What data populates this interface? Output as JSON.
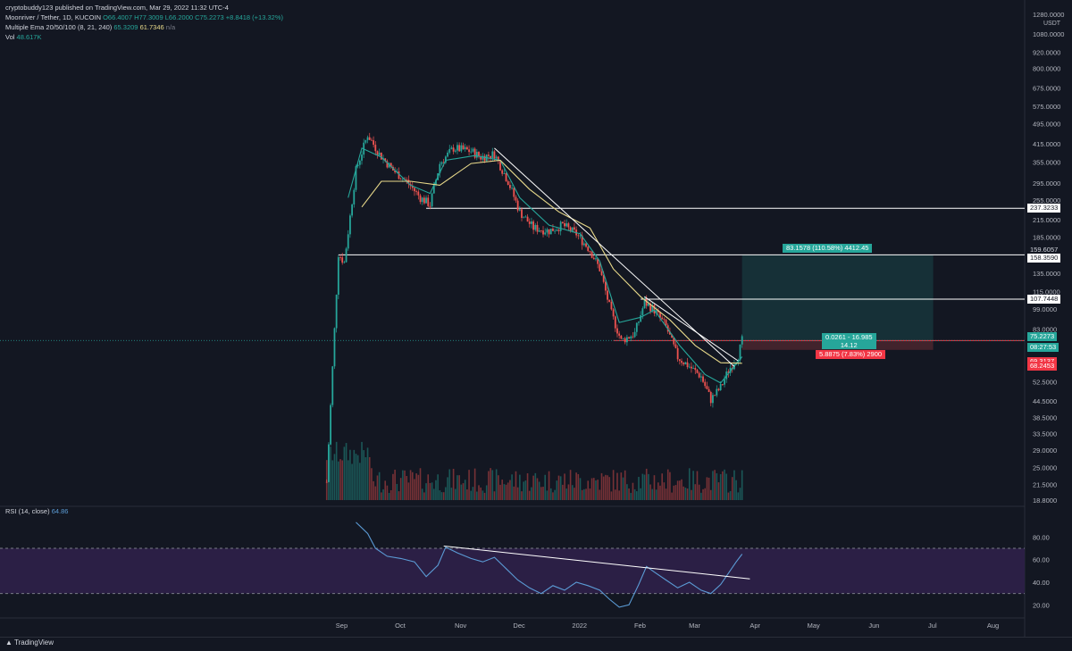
{
  "header": {
    "publisher": "cryptobuddy123 published on TradingView.com, Mar 29, 2022 11:32 UTC-4",
    "symbol": "Moonriver / Tether, 1D, KUCOIN",
    "ohlc": {
      "open": "O66.4007",
      "high": "H77.3009",
      "low": "L66.2000",
      "close": "C75.2273",
      "change": "+8.8418 (+13.32%)"
    },
    "ema_name": "Multiple Ema 20/50/100 (8, 21, 240)",
    "ema_values": [
      "65.3209",
      "61.7346",
      "n/a"
    ],
    "vol_name": "Vol",
    "vol_value": "48.617K",
    "rsi_name": "RSI (14, close)",
    "rsi_value": "64.86"
  },
  "price_axis": {
    "currency": "USDT",
    "ticks": [
      "1280.0000",
      "1080.0000",
      "920.0000",
      "800.0000",
      "675.0000",
      "575.0000",
      "495.0000",
      "415.0000",
      "355.0000",
      "295.0000",
      "255.0000",
      "215.0000",
      "185.0000",
      "135.0000",
      "115.0000",
      "99.0000",
      "83.0000",
      "62.5000",
      "52.5000",
      "44.5000",
      "38.5000",
      "33.5000",
      "29.0000",
      "25.0000",
      "21.5000",
      "18.8000"
    ],
    "labels": {
      "l237": "237.3233",
      "l159": "159.6057",
      "l158": "158.3590",
      "l107": "107.7448",
      "last": "75.2273",
      "countdown": "08:27:53",
      "l75": "75.2012",
      "l69": "69.3137",
      "l68": "68.2453"
    }
  },
  "rsi_axis": {
    "ticks": [
      "80.00",
      "60.00",
      "40.00",
      "20.00"
    ]
  },
  "time_axis": {
    "ticks": [
      "Sep",
      "Oct",
      "Nov",
      "Dec",
      "2022",
      "Feb",
      "Mar",
      "Apr",
      "May",
      "Jun",
      "Jul",
      "Aug"
    ]
  },
  "position": {
    "target_label": "83.1578 (110.58%) 4412.45",
    "center_label_1": "0.0261 - 16.985",
    "center_label_2": "14.12",
    "stop_label": "5.8875 (7.83%) 2900"
  },
  "footer": {
    "brand": "TradingView"
  },
  "colors": {
    "background": "#131722",
    "up": "#26a69a",
    "down": "#ef5350",
    "ema_fast": "#26a69a",
    "ema_slow": "#e8d98a",
    "rsi_line": "#5b9bd5",
    "rsi_band": "#2b1f45"
  },
  "chart_data": {
    "type": "candlestick",
    "symbol": "Moonriver / Tether, 1D, KUCOIN",
    "scale": "log",
    "ylim": [
      18.8,
      1280
    ],
    "x_range": [
      "2021-08-24",
      "2022-08-20"
    ],
    "close_path": [
      {
        "date": "2021-08-28",
        "close": 22
      },
      {
        "date": "2021-09-03",
        "close": 160
      },
      {
        "date": "2021-09-06",
        "close": 148
      },
      {
        "date": "2021-09-12",
        "close": 330
      },
      {
        "date": "2021-09-18",
        "close": 450
      },
      {
        "date": "2021-09-24",
        "close": 380
      },
      {
        "date": "2021-10-01",
        "close": 330
      },
      {
        "date": "2021-10-08",
        "close": 300
      },
      {
        "date": "2021-10-15",
        "close": 260
      },
      {
        "date": "2021-10-20",
        "close": 245
      },
      {
        "date": "2021-10-25",
        "close": 350
      },
      {
        "date": "2021-11-01",
        "close": 400
      },
      {
        "date": "2021-11-10",
        "close": 390
      },
      {
        "date": "2021-11-15",
        "close": 370
      },
      {
        "date": "2021-11-22",
        "close": 380
      },
      {
        "date": "2021-11-29",
        "close": 300
      },
      {
        "date": "2021-12-05",
        "close": 230
      },
      {
        "date": "2021-12-12",
        "close": 200
      },
      {
        "date": "2021-12-20",
        "close": 195
      },
      {
        "date": "2021-12-27",
        "close": 205
      },
      {
        "date": "2022-01-03",
        "close": 190
      },
      {
        "date": "2022-01-10",
        "close": 165
      },
      {
        "date": "2022-01-15",
        "close": 140
      },
      {
        "date": "2022-01-21",
        "close": 95
      },
      {
        "date": "2022-01-26",
        "close": 75
      },
      {
        "date": "2022-02-02",
        "close": 80
      },
      {
        "date": "2022-02-07",
        "close": 105
      },
      {
        "date": "2022-02-12",
        "close": 98
      },
      {
        "date": "2022-02-18",
        "close": 85
      },
      {
        "date": "2022-02-24",
        "close": 65
      },
      {
        "date": "2022-03-02",
        "close": 60
      },
      {
        "date": "2022-03-08",
        "close": 55
      },
      {
        "date": "2022-03-13",
        "close": 45
      },
      {
        "date": "2022-03-18",
        "close": 50
      },
      {
        "date": "2022-03-22",
        "close": 58
      },
      {
        "date": "2022-03-27",
        "close": 66
      },
      {
        "date": "2022-03-29",
        "close": 75.2273
      }
    ],
    "ema_fast": [
      {
        "date": "2021-09-08",
        "v": 260
      },
      {
        "date": "2021-09-15",
        "v": 400
      },
      {
        "date": "2021-09-25",
        "v": 370
      },
      {
        "date": "2021-10-10",
        "v": 290
      },
      {
        "date": "2021-10-20",
        "v": 270
      },
      {
        "date": "2021-10-28",
        "v": 360
      },
      {
        "date": "2021-11-12",
        "v": 375
      },
      {
        "date": "2021-11-25",
        "v": 360
      },
      {
        "date": "2021-12-05",
        "v": 260
      },
      {
        "date": "2021-12-20",
        "v": 205
      },
      {
        "date": "2022-01-05",
        "v": 190
      },
      {
        "date": "2022-01-15",
        "v": 150
      },
      {
        "date": "2022-01-25",
        "v": 88
      },
      {
        "date": "2022-02-05",
        "v": 92
      },
      {
        "date": "2022-02-12",
        "v": 98
      },
      {
        "date": "2022-02-25",
        "v": 72
      },
      {
        "date": "2022-03-10",
        "v": 56
      },
      {
        "date": "2022-03-18",
        "v": 52
      },
      {
        "date": "2022-03-29",
        "v": 65.3209
      }
    ],
    "ema_slow": [
      {
        "date": "2021-09-15",
        "v": 240
      },
      {
        "date": "2021-09-25",
        "v": 300
      },
      {
        "date": "2021-10-10",
        "v": 300
      },
      {
        "date": "2021-10-25",
        "v": 290
      },
      {
        "date": "2021-11-10",
        "v": 350
      },
      {
        "date": "2021-11-25",
        "v": 360
      },
      {
        "date": "2021-12-10",
        "v": 280
      },
      {
        "date": "2021-12-25",
        "v": 230
      },
      {
        "date": "2022-01-10",
        "v": 200
      },
      {
        "date": "2022-01-22",
        "v": 140
      },
      {
        "date": "2022-02-05",
        "v": 110
      },
      {
        "date": "2022-02-20",
        "v": 90
      },
      {
        "date": "2022-03-05",
        "v": 72
      },
      {
        "date": "2022-03-18",
        "v": 62
      },
      {
        "date": "2022-03-29",
        "v": 61.7346
      }
    ],
    "horizontal_lines": [
      237.3233,
      158.359,
      107.7448,
      75.2012
    ],
    "trendlines": [
      {
        "from": {
          "date": "2021-11-22",
          "price": 400
        },
        "to": {
          "date": "2022-03-25",
          "price": 60
        }
      },
      {
        "from": {
          "date": "2022-02-07",
          "price": 110
        },
        "to": {
          "date": "2022-03-27",
          "price": 63
        }
      }
    ],
    "position": {
      "entry": 75.2012,
      "target": 158.359,
      "stop": 69.3137,
      "from": "2022-03-29",
      "to": "2022-07-05"
    },
    "rsi": {
      "name": "RSI (14, close)",
      "ylim": [
        10,
        100
      ],
      "bands": [
        30,
        70
      ],
      "points": [
        {
          "date": "2021-09-12",
          "v": 93
        },
        {
          "date": "2021-09-18",
          "v": 83
        },
        {
          "date": "2021-09-22",
          "v": 70
        },
        {
          "date": "2021-09-28",
          "v": 63
        },
        {
          "date": "2021-10-05",
          "v": 61
        },
        {
          "date": "2021-10-12",
          "v": 58
        },
        {
          "date": "2021-10-18",
          "v": 45
        },
        {
          "date": "2021-10-24",
          "v": 55
        },
        {
          "date": "2021-10-28",
          "v": 71
        },
        {
          "date": "2021-11-03",
          "v": 66
        },
        {
          "date": "2021-11-10",
          "v": 61
        },
        {
          "date": "2021-11-16",
          "v": 58
        },
        {
          "date": "2021-11-22",
          "v": 62
        },
        {
          "date": "2021-11-28",
          "v": 52
        },
        {
          "date": "2021-12-04",
          "v": 42
        },
        {
          "date": "2021-12-10",
          "v": 35
        },
        {
          "date": "2021-12-16",
          "v": 30
        },
        {
          "date": "2021-12-22",
          "v": 37
        },
        {
          "date": "2021-12-28",
          "v": 33
        },
        {
          "date": "2022-01-03",
          "v": 40
        },
        {
          "date": "2022-01-09",
          "v": 37
        },
        {
          "date": "2022-01-15",
          "v": 33
        },
        {
          "date": "2022-01-20",
          "v": 25
        },
        {
          "date": "2022-01-25",
          "v": 18
        },
        {
          "date": "2022-01-30",
          "v": 20
        },
        {
          "date": "2022-02-04",
          "v": 38
        },
        {
          "date": "2022-02-08",
          "v": 54
        },
        {
          "date": "2022-02-12",
          "v": 49
        },
        {
          "date": "2022-02-18",
          "v": 42
        },
        {
          "date": "2022-02-24",
          "v": 35
        },
        {
          "date": "2022-03-02",
          "v": 40
        },
        {
          "date": "2022-03-08",
          "v": 33
        },
        {
          "date": "2022-03-13",
          "v": 30
        },
        {
          "date": "2022-03-18",
          "v": 38
        },
        {
          "date": "2022-03-22",
          "v": 48
        },
        {
          "date": "2022-03-26",
          "v": 58
        },
        {
          "date": "2022-03-29",
          "v": 64.86
        }
      ],
      "trendline": {
        "from": {
          "date": "2021-10-27",
          "v": 72
        },
        "to": {
          "date": "2022-04-02",
          "v": 43
        }
      }
    },
    "volume": {
      "name": "Vol",
      "last": "48.617K"
    }
  }
}
